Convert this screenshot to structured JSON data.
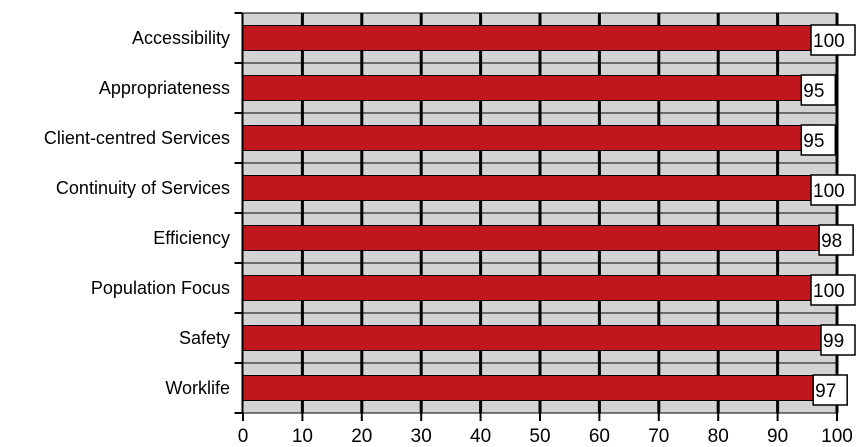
{
  "chart_data": {
    "type": "bar",
    "orientation": "horizontal",
    "categories": [
      "Accessibility",
      "Appropriateness",
      "Client-centred Services",
      "Continuity of Services",
      "Efficiency",
      "Population Focus",
      "Safety",
      "Worklife"
    ],
    "values": [
      100,
      95,
      95,
      100,
      98,
      100,
      99,
      97
    ],
    "value_labels": [
      "100",
      "95",
      "95",
      "100",
      "98",
      "100",
      "99",
      "97"
    ],
    "xlim": [
      0,
      100
    ],
    "xticks": [
      "0",
      "10",
      "20",
      "30",
      "40",
      "50",
      "60",
      "70",
      "80",
      "90",
      "100"
    ],
    "grid": true,
    "legend": "none",
    "colors": {
      "bar": "#c0171f",
      "plot_background": "#d3d3d3",
      "gridline": "#000000",
      "label_box": "#ffffff"
    }
  }
}
